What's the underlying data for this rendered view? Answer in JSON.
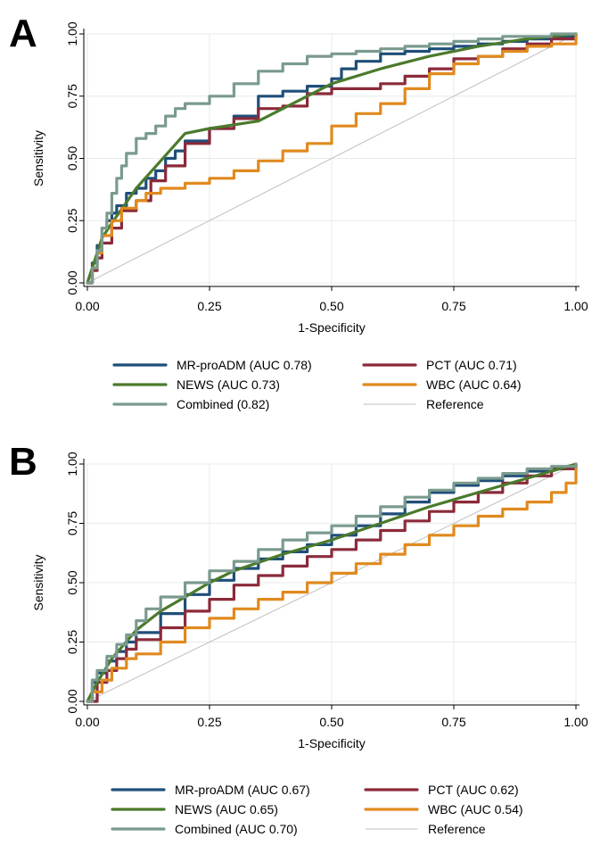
{
  "colors": {
    "mrproadm": "#1f4e79",
    "pct": "#8b2a3a",
    "news": "#4a7a2c",
    "wbc": "#e08a1e",
    "combined": "#7a9a8e",
    "reference": "#bfbfbf"
  },
  "chart_data": [
    {
      "type": "line",
      "panel_label": "A",
      "xlabel": "1-Specificity",
      "ylabel": "Sensitivity",
      "xlim": [
        0,
        1
      ],
      "ylim": [
        0,
        1
      ],
      "xticks": [
        "0.00",
        "0.25",
        "0.50",
        "0.75",
        "1.00"
      ],
      "yticks": [
        "0.00",
        "0.25",
        "0.50",
        "0.75",
        "1.00"
      ],
      "legend": "bottom",
      "series": [
        {
          "key": "mrproadm",
          "name": "MR-proADM (AUC 0.78)",
          "x": [
            0,
            0.01,
            0.02,
            0.03,
            0.04,
            0.05,
            0.06,
            0.08,
            0.1,
            0.12,
            0.14,
            0.16,
            0.18,
            0.2,
            0.25,
            0.3,
            0.35,
            0.4,
            0.45,
            0.5,
            0.52,
            0.55,
            0.6,
            0.65,
            0.7,
            0.75,
            0.8,
            0.85,
            0.9,
            0.95,
            1.0
          ],
          "y": [
            0,
            0.08,
            0.15,
            0.22,
            0.25,
            0.28,
            0.31,
            0.36,
            0.38,
            0.42,
            0.45,
            0.5,
            0.53,
            0.57,
            0.62,
            0.67,
            0.75,
            0.77,
            0.79,
            0.82,
            0.86,
            0.89,
            0.92,
            0.93,
            0.94,
            0.95,
            0.96,
            0.97,
            0.98,
            0.99,
            1.0
          ]
        },
        {
          "key": "pct",
          "name": "PCT (AUC 0.71)",
          "x": [
            0,
            0.01,
            0.02,
            0.03,
            0.05,
            0.07,
            0.1,
            0.13,
            0.16,
            0.2,
            0.25,
            0.3,
            0.35,
            0.4,
            0.45,
            0.5,
            0.55,
            0.6,
            0.65,
            0.7,
            0.75,
            0.8,
            0.85,
            0.9,
            0.95,
            1.0
          ],
          "y": [
            0,
            0.05,
            0.1,
            0.16,
            0.22,
            0.29,
            0.33,
            0.41,
            0.47,
            0.56,
            0.62,
            0.66,
            0.7,
            0.71,
            0.76,
            0.78,
            0.78,
            0.8,
            0.83,
            0.86,
            0.9,
            0.91,
            0.94,
            0.96,
            0.98,
            1.0
          ]
        },
        {
          "key": "news",
          "name": "NEWS (AUC 0.73)",
          "x": [
            0,
            0.03,
            0.05,
            0.1,
            0.15,
            0.2,
            0.25,
            0.35,
            0.5,
            0.6,
            0.7,
            0.8,
            0.9,
            1.0
          ],
          "y": [
            0,
            0.18,
            0.24,
            0.38,
            0.49,
            0.6,
            0.62,
            0.65,
            0.8,
            0.86,
            0.91,
            0.95,
            0.98,
            1.0
          ]
        },
        {
          "key": "wbc",
          "name": "WBC (AUC 0.64)",
          "x": [
            0,
            0.01,
            0.02,
            0.03,
            0.05,
            0.07,
            0.1,
            0.12,
            0.15,
            0.2,
            0.25,
            0.3,
            0.35,
            0.4,
            0.45,
            0.5,
            0.55,
            0.6,
            0.65,
            0.7,
            0.75,
            0.8,
            0.85,
            0.9,
            0.95,
            1.0
          ],
          "y": [
            0,
            0.06,
            0.12,
            0.19,
            0.25,
            0.3,
            0.33,
            0.36,
            0.38,
            0.4,
            0.42,
            0.45,
            0.49,
            0.53,
            0.56,
            0.63,
            0.68,
            0.72,
            0.78,
            0.84,
            0.88,
            0.91,
            0.93,
            0.95,
            0.96,
            1.0
          ]
        },
        {
          "key": "combined",
          "name": "Combined (0.82)",
          "x": [
            0,
            0.01,
            0.02,
            0.03,
            0.04,
            0.05,
            0.06,
            0.07,
            0.08,
            0.1,
            0.12,
            0.14,
            0.16,
            0.18,
            0.2,
            0.25,
            0.3,
            0.35,
            0.4,
            0.45,
            0.5,
            0.55,
            0.6,
            0.65,
            0.7,
            0.75,
            0.8,
            0.85,
            0.9,
            0.95,
            1.0
          ],
          "y": [
            0,
            0.06,
            0.13,
            0.22,
            0.28,
            0.36,
            0.42,
            0.47,
            0.52,
            0.58,
            0.6,
            0.63,
            0.67,
            0.7,
            0.72,
            0.75,
            0.8,
            0.85,
            0.88,
            0.91,
            0.92,
            0.93,
            0.94,
            0.95,
            0.96,
            0.97,
            0.98,
            0.99,
            0.99,
            1.0,
            1.0
          ]
        }
      ],
      "legend_items": [
        {
          "key": "mrproadm",
          "label": "MR-proADM (AUC 0.78)"
        },
        {
          "key": "pct",
          "label": "PCT (AUC 0.71)"
        },
        {
          "key": "news",
          "label": "NEWS (AUC 0.73)"
        },
        {
          "key": "wbc",
          "label": "WBC (AUC 0.64)"
        },
        {
          "key": "combined",
          "label": "Combined (0.82)"
        },
        {
          "key": "reference",
          "label": "Reference"
        }
      ]
    },
    {
      "type": "line",
      "panel_label": "B",
      "xlabel": "1-Specificity",
      "ylabel": "Sensitivity",
      "xlim": [
        0,
        1
      ],
      "ylim": [
        0,
        1
      ],
      "xticks": [
        "0.00",
        "0.25",
        "0.50",
        "0.75",
        "1.00"
      ],
      "yticks": [
        "0.00",
        "0.25",
        "0.50",
        "0.75",
        "1.00"
      ],
      "legend": "bottom",
      "series": [
        {
          "key": "mrproadm",
          "name": "MR-proADM (AUC 0.67)",
          "x": [
            0,
            0.01,
            0.02,
            0.04,
            0.06,
            0.08,
            0.1,
            0.15,
            0.2,
            0.25,
            0.3,
            0.35,
            0.4,
            0.45,
            0.5,
            0.55,
            0.6,
            0.65,
            0.7,
            0.75,
            0.8,
            0.85,
            0.9,
            0.95,
            1.0
          ],
          "y": [
            0,
            0.08,
            0.12,
            0.17,
            0.21,
            0.25,
            0.29,
            0.37,
            0.45,
            0.51,
            0.56,
            0.6,
            0.63,
            0.66,
            0.7,
            0.74,
            0.79,
            0.84,
            0.88,
            0.91,
            0.93,
            0.95,
            0.97,
            0.98,
            1.0
          ]
        },
        {
          "key": "pct",
          "name": "PCT (AUC 0.62)",
          "x": [
            0,
            0.02,
            0.04,
            0.06,
            0.08,
            0.1,
            0.15,
            0.2,
            0.25,
            0.3,
            0.35,
            0.4,
            0.45,
            0.5,
            0.55,
            0.6,
            0.65,
            0.7,
            0.75,
            0.8,
            0.85,
            0.9,
            0.95,
            1.0
          ],
          "y": [
            0,
            0.08,
            0.13,
            0.18,
            0.22,
            0.26,
            0.31,
            0.38,
            0.43,
            0.49,
            0.53,
            0.57,
            0.61,
            0.64,
            0.68,
            0.72,
            0.76,
            0.8,
            0.84,
            0.88,
            0.92,
            0.95,
            0.98,
            1.0
          ]
        },
        {
          "key": "news",
          "name": "NEWS (AUC 0.65)",
          "x": [
            0,
            0.02,
            0.05,
            0.1,
            0.15,
            0.2,
            0.25,
            0.3,
            0.4,
            0.5,
            0.6,
            0.7,
            0.8,
            0.9,
            1.0
          ],
          "y": [
            0,
            0.08,
            0.18,
            0.3,
            0.38,
            0.44,
            0.5,
            0.55,
            0.62,
            0.68,
            0.75,
            0.82,
            0.88,
            0.94,
            1.0
          ]
        },
        {
          "key": "wbc",
          "name": "WBC (AUC 0.54)",
          "x": [
            0,
            0.01,
            0.03,
            0.05,
            0.08,
            0.1,
            0.15,
            0.2,
            0.25,
            0.3,
            0.35,
            0.4,
            0.45,
            0.5,
            0.55,
            0.6,
            0.65,
            0.7,
            0.75,
            0.8,
            0.85,
            0.9,
            0.95,
            0.98,
            1.0
          ],
          "y": [
            0,
            0.04,
            0.09,
            0.14,
            0.18,
            0.2,
            0.25,
            0.31,
            0.35,
            0.39,
            0.43,
            0.46,
            0.5,
            0.54,
            0.58,
            0.62,
            0.66,
            0.7,
            0.74,
            0.78,
            0.81,
            0.84,
            0.88,
            0.92,
            1.0
          ]
        },
        {
          "key": "combined",
          "name": "Combined (AUC 0.70)",
          "x": [
            0,
            0.01,
            0.02,
            0.04,
            0.06,
            0.08,
            0.1,
            0.12,
            0.15,
            0.2,
            0.25,
            0.3,
            0.35,
            0.4,
            0.45,
            0.5,
            0.55,
            0.6,
            0.65,
            0.7,
            0.75,
            0.8,
            0.85,
            0.9,
            0.95,
            1.0
          ],
          "y": [
            0,
            0.09,
            0.13,
            0.19,
            0.24,
            0.28,
            0.34,
            0.39,
            0.44,
            0.5,
            0.55,
            0.59,
            0.64,
            0.68,
            0.71,
            0.74,
            0.78,
            0.82,
            0.86,
            0.89,
            0.92,
            0.94,
            0.96,
            0.98,
            0.99,
            1.0
          ]
        }
      ],
      "legend_items": [
        {
          "key": "mrproadm",
          "label": "MR-proADM (AUC 0.67)"
        },
        {
          "key": "pct",
          "label": " PCT (AUC 0.62)"
        },
        {
          "key": "news",
          "label": "NEWS (AUC 0.65)"
        },
        {
          "key": "wbc",
          "label": "WBC (AUC 0.54)"
        },
        {
          "key": "combined",
          "label": "Combined (AUC 0.70)"
        },
        {
          "key": "reference",
          "label": "Reference"
        }
      ]
    }
  ]
}
